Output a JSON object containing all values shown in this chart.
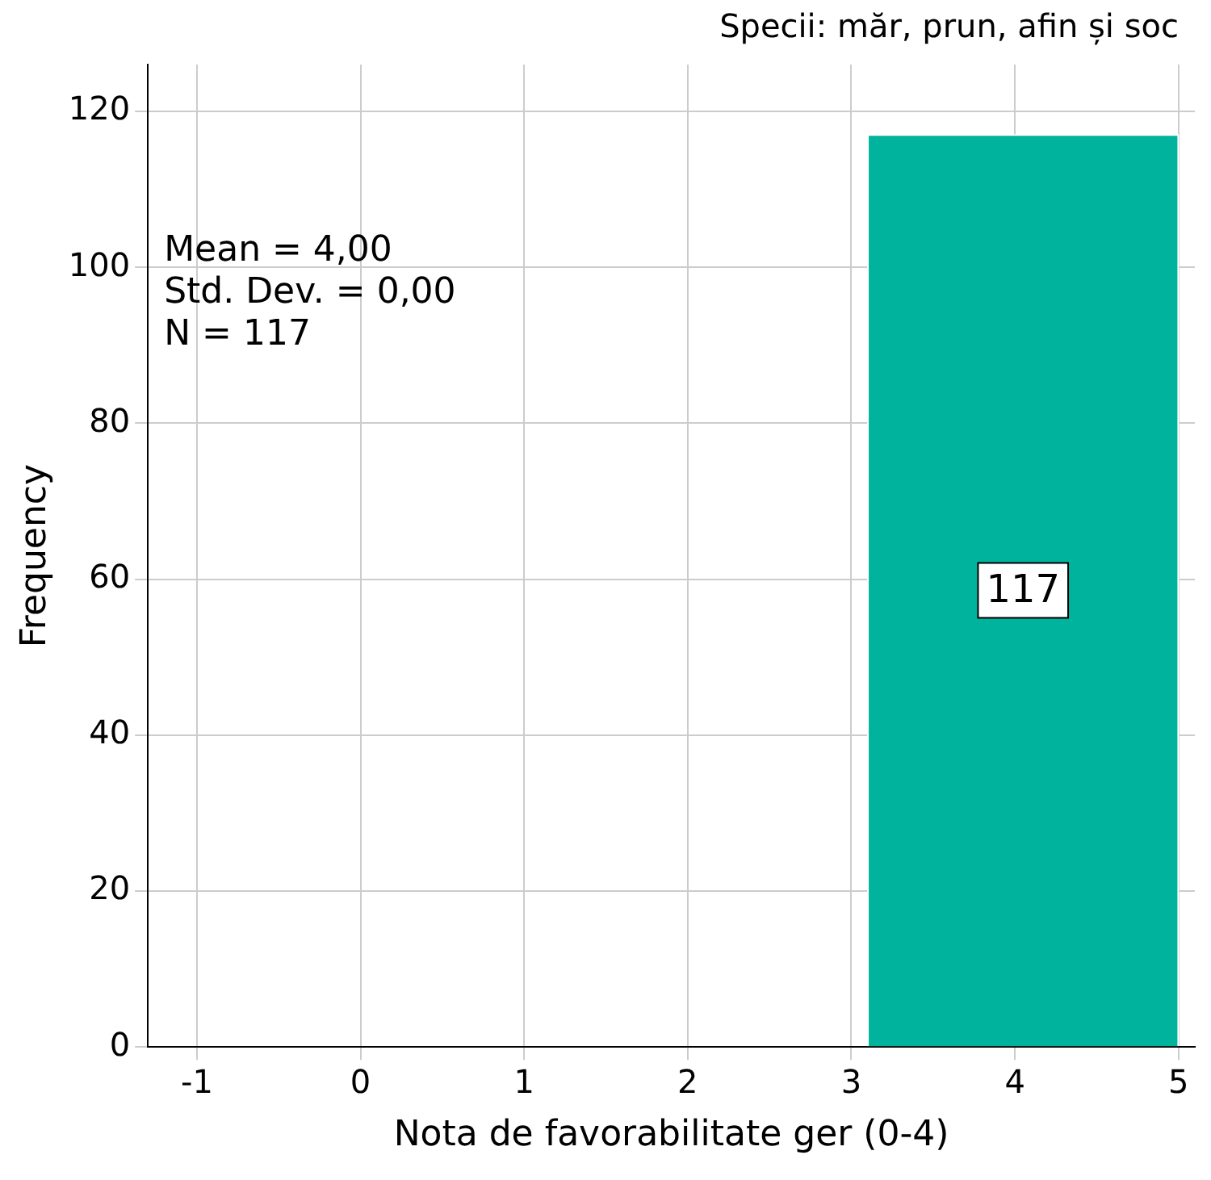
{
  "chart_data": {
    "type": "histogram",
    "title": "Specii: măr, prun, afin și soc",
    "xlabel": "Nota de favorabilitate ger (0-4)",
    "ylabel": "Frequency",
    "bins": [
      3.1,
      5.0
    ],
    "values": [
      117
    ],
    "color": "#00b39c",
    "xlim": [
      -1.3,
      5.1
    ],
    "xticks": [
      -1,
      0,
      1,
      2,
      3,
      4,
      5
    ],
    "ylim": [
      0,
      126
    ],
    "yticks": [
      0,
      20,
      40,
      60,
      80,
      100,
      120
    ],
    "grid": true,
    "data_labels": true,
    "legend": false,
    "annotations": [
      "Mean = 4,00",
      "Std. Dev. = 0,00",
      "N = 117"
    ]
  }
}
